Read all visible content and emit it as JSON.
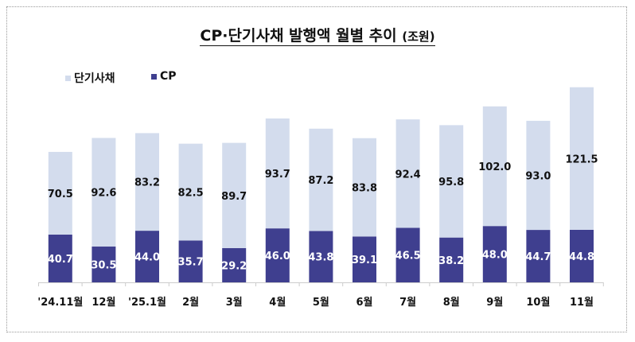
{
  "chart_data": {
    "type": "bar",
    "stacked": true,
    "title": "CP·단기사채 발행액 월별 추이",
    "unit": "(조원)",
    "categories": [
      "'24.11월",
      "12월",
      "'25.1월",
      "2월",
      "3월",
      "4월",
      "5월",
      "6월",
      "7월",
      "8월",
      "9월",
      "10월",
      "11월"
    ],
    "series": [
      {
        "name": "CP",
        "color": "#3f3f8f",
        "values": [
          40.7,
          30.5,
          44.0,
          35.7,
          29.2,
          46.0,
          43.8,
          39.1,
          46.5,
          38.2,
          48.0,
          44.7,
          44.8
        ]
      },
      {
        "name": "단기사채",
        "color": "#d3dced",
        "values": [
          70.5,
          92.6,
          83.2,
          82.5,
          89.7,
          93.7,
          87.2,
          83.8,
          92.4,
          95.8,
          102.0,
          93.0,
          121.5
        ]
      }
    ],
    "legend": [
      "단기사채",
      "CP"
    ],
    "legend_placement": "top-left",
    "grid": false,
    "ylim": [
      0,
      170
    ]
  }
}
